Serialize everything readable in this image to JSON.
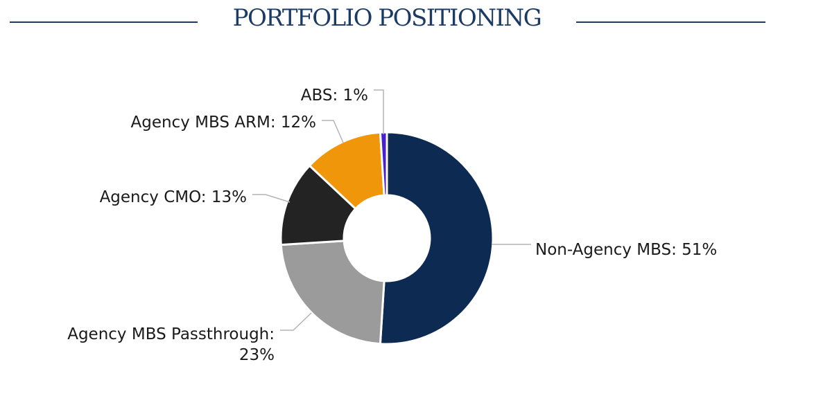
{
  "header": {
    "title": "PORTFOLIO POSITIONING"
  },
  "chart_data": {
    "type": "pie",
    "variant": "donut",
    "title": "PORTFOLIO POSITIONING",
    "categories": [
      "Non-Agency MBS",
      "Agency MBS Passthrough",
      "Agency CMO",
      "Agency MBS ARM",
      "ABS"
    ],
    "values": [
      51,
      23,
      13,
      12,
      1
    ],
    "unit": "%",
    "labels": [
      {
        "lines": [
          "Non-Agency MBS: 51%"
        ]
      },
      {
        "lines": [
          "Agency MBS Passthrough:",
          "23%"
        ]
      },
      {
        "lines": [
          "Agency CMO: 13%"
        ]
      },
      {
        "lines": [
          "Agency MBS ARM: 12%"
        ]
      },
      {
        "lines": [
          "ABS: 1%"
        ]
      }
    ],
    "colors": [
      "#0d2b52",
      "#9b9b9b",
      "#232323",
      "#f0960a",
      "#4a1fd0"
    ],
    "legend": "none",
    "start": "top",
    "direction": "clockwise"
  }
}
